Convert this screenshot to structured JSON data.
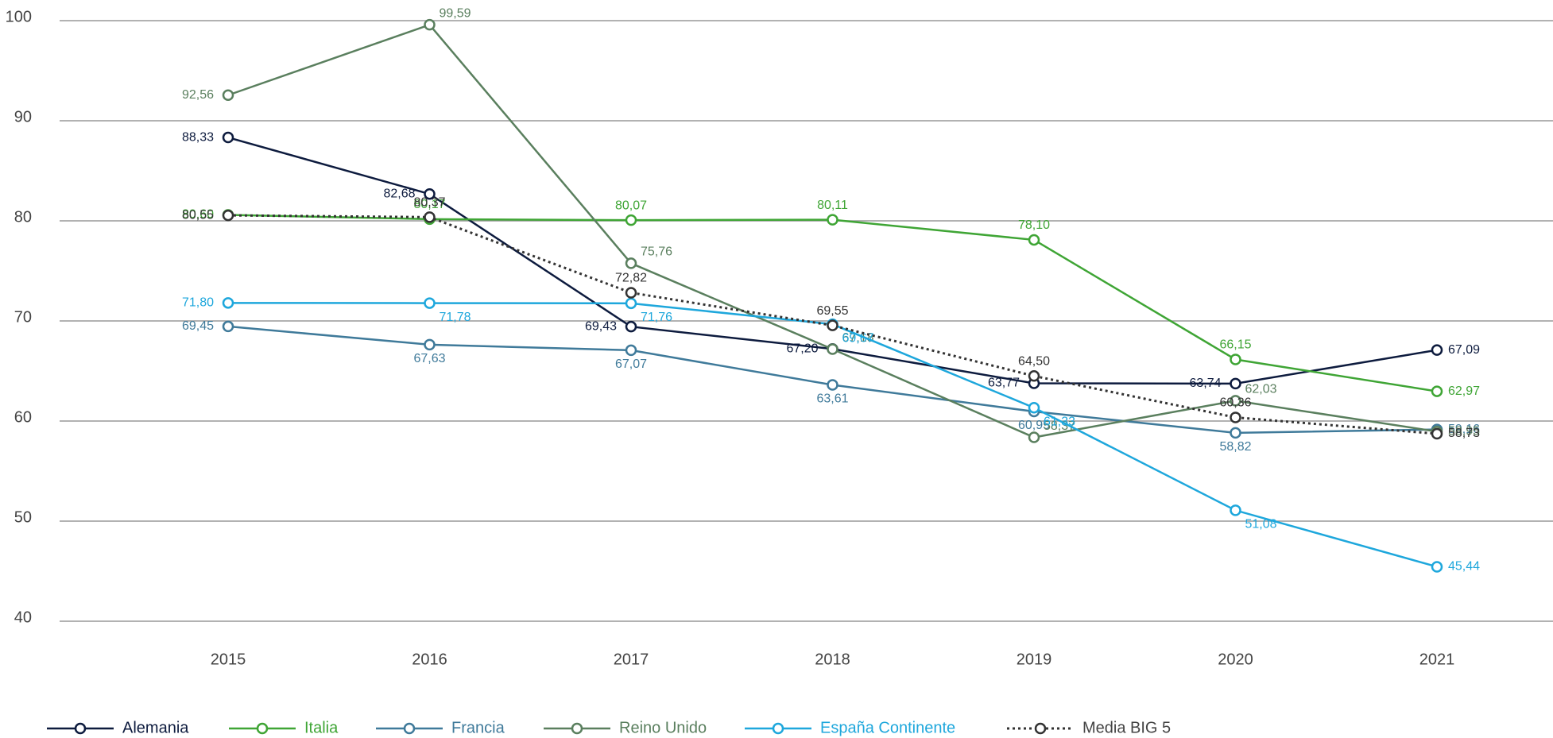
{
  "chart_data": {
    "type": "line",
    "categories": [
      "2015",
      "2016",
      "2017",
      "2018",
      "2019",
      "2020",
      "2021"
    ],
    "ylim": [
      40,
      100
    ],
    "yticks": [
      40,
      50,
      60,
      70,
      80,
      90,
      100
    ],
    "grid": true,
    "legend": "bottom",
    "series": [
      {
        "name": "Alemania",
        "color": "#0d1b3e",
        "dash": false,
        "values": [
          88.33,
          82.68,
          69.43,
          67.2,
          63.77,
          63.74,
          67.09
        ],
        "value_labels": [
          "88,33",
          "82,68",
          "69,43",
          "67,20",
          "63,77",
          "63,74",
          "67,09"
        ]
      },
      {
        "name": "Italia",
        "color": "#3fa535",
        "dash": false,
        "values": [
          80.6,
          80.17,
          80.07,
          80.11,
          78.1,
          66.15,
          62.97
        ],
        "value_labels": [
          "80,60",
          "80,17",
          "80,07",
          "80,11",
          "78,10",
          "66,15",
          "62,97"
        ]
      },
      {
        "name": "Francia",
        "color": "#3f7a9a",
        "dash": false,
        "values": [
          69.45,
          67.63,
          67.07,
          63.61,
          60.95,
          58.82,
          59.16
        ],
        "value_labels": [
          "69,45",
          "67,63",
          "67,07",
          "63,61",
          "60,95",
          "58,82",
          "59,16"
        ]
      },
      {
        "name": "Reino Unido",
        "color": "#5a7f5e",
        "dash": false,
        "values": [
          92.56,
          99.59,
          75.76,
          67.18,
          58.37,
          62.03,
          58.95
        ],
        "value_labels": [
          "92,56",
          "99,59",
          "75,76",
          "67,18",
          "58,37",
          "62,03",
          "58,95"
        ]
      },
      {
        "name": "España Continente",
        "color": "#1ea7dc",
        "dash": false,
        "values": [
          71.8,
          71.78,
          71.76,
          69.67,
          61.33,
          51.08,
          45.44
        ],
        "value_labels": [
          "71,80",
          "71,78",
          "71,76",
          "69,67",
          "61,33",
          "51,08",
          "45,44"
        ]
      },
      {
        "name": "Media BIG 5",
        "color": "#333333",
        "dash": true,
        "values": [
          80.55,
          80.37,
          72.82,
          69.55,
          64.5,
          60.36,
          58.73
        ],
        "value_labels": [
          "80,55",
          "80,37",
          "72,82",
          "69,55",
          "64,50",
          "60,36",
          "58,73"
        ]
      }
    ]
  }
}
